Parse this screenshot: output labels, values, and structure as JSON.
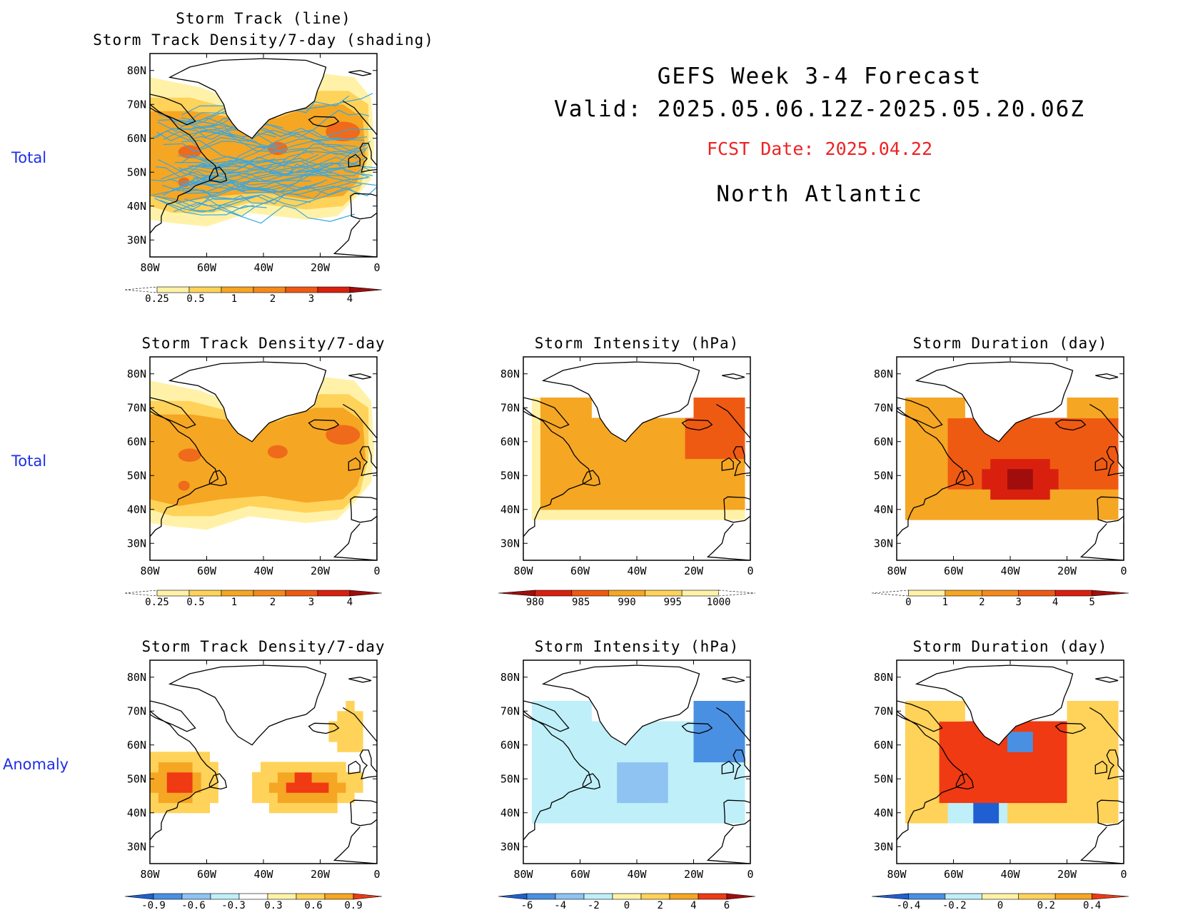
{
  "header": {
    "line1": "GEFS Week 3-4 Forecast",
    "line2": "Valid: 2025.05.06.12Z-2025.05.20.06Z",
    "fcst": "FCST Date: 2025.04.22",
    "region": "North Atlantic"
  },
  "row_labels": [
    "Total",
    "Total",
    "Anomaly"
  ],
  "axes": {
    "lon_ticks": [
      "80W",
      "60W",
      "40W",
      "20W",
      "0"
    ],
    "lat_ticks": [
      "80N",
      "70N",
      "60N",
      "50N",
      "40N",
      "30N"
    ],
    "lon_range": [
      -80,
      0
    ],
    "lat_range": [
      25,
      85
    ]
  },
  "colors": {
    "row_label": "#1f2ee8",
    "fcst_date": "#ee2222",
    "track_line": "#3aa7e0"
  },
  "panels": [
    {
      "id": "track",
      "title_lines": [
        "Storm Track (line)",
        "Storm Track Density/7-day (shading)"
      ]
    },
    {
      "id": "density_total",
      "title_lines": [
        "Storm Track Density/7-day"
      ]
    },
    {
      "id": "intensity_total",
      "title_lines": [
        "Storm Intensity (hPa)"
      ]
    },
    {
      "id": "duration_total",
      "title_lines": [
        "Storm Duration (day)"
      ]
    },
    {
      "id": "density_anom",
      "title_lines": [
        "Storm Track Density/7-day"
      ]
    },
    {
      "id": "intensity_anom",
      "title_lines": [
        "Storm Intensity (hPa)"
      ]
    },
    {
      "id": "duration_anom",
      "title_lines": [
        "Storm Duration (day)"
      ]
    }
  ],
  "colorbars": {
    "density": {
      "labels": [
        "0.25",
        "0.5",
        "1",
        "2",
        "3",
        "4"
      ],
      "colors": [
        "#ffffff",
        "#fff2a8",
        "#ffd25a",
        "#f5a623",
        "#f58a1a",
        "#ef5a13",
        "#d9200f",
        "#a10d0d"
      ]
    },
    "intensity": {
      "labels": [
        "980",
        "985",
        "990",
        "995",
        "1000"
      ],
      "colors": [
        "#a10d0d",
        "#d9200f",
        "#ef5a13",
        "#f5a623",
        "#ffd25a",
        "#fff2a8",
        "#ffffff"
      ]
    },
    "duration": {
      "labels": [
        "0",
        "1",
        "2",
        "3",
        "4",
        "5"
      ],
      "colors": [
        "#ffffff",
        "#fff2a8",
        "#f5a623",
        "#f58a1a",
        "#ef5a13",
        "#d9200f",
        "#a10d0d"
      ]
    },
    "density_anom": {
      "labels": [
        "-0.9",
        "-0.6",
        "-0.3",
        "0.3",
        "0.6",
        "0.9"
      ],
      "colors": [
        "#1f5fd1",
        "#4a90e2",
        "#8ec3f2",
        "#bfeff8",
        "#ffffff",
        "#fff2a8",
        "#ffd25a",
        "#f5a623",
        "#ef3a13"
      ]
    },
    "intensity_anom": {
      "labels": [
        "-6",
        "-4",
        "-2",
        "0",
        "2",
        "4",
        "6"
      ],
      "colors": [
        "#1f5fd1",
        "#4a90e2",
        "#8ec3f2",
        "#bfeff8",
        "#fff2a8",
        "#ffd25a",
        "#f5a623",
        "#ef3a13",
        "#a10d0d"
      ]
    },
    "duration_anom": {
      "labels": [
        "-0.4",
        "-0.2",
        "0",
        "0.2",
        "0.4"
      ],
      "colors": [
        "#1f5fd1",
        "#4a90e2",
        "#bfeff8",
        "#fff2a8",
        "#ffd25a",
        "#f5a623",
        "#ef3a13"
      ]
    }
  },
  "chart_data": {
    "type": "heatmap",
    "units": {
      "density": "storms/7-day",
      "intensity": "hPa",
      "duration": "day"
    },
    "density_peaks_total": [
      {
        "lon": -66,
        "lat": 56,
        "value": 3
      },
      {
        "lon": -35,
        "lat": 57,
        "value": 3
      },
      {
        "lon": -12,
        "lat": 62,
        "value": 3
      }
    ],
    "intensity_total_range": [
      990,
      1000
    ],
    "duration_total_max": {
      "lon": -36,
      "lat": 49,
      "value": 5
    },
    "anomaly_density_max": {
      "lon": -25,
      "lat": 48,
      "value": 0.9
    },
    "anomaly_intensity_min": {
      "lon": -8,
      "lat": 65,
      "value": -4
    },
    "anomaly_duration_min": {
      "lon": -48,
      "lat": 40,
      "value": -0.4
    }
  }
}
